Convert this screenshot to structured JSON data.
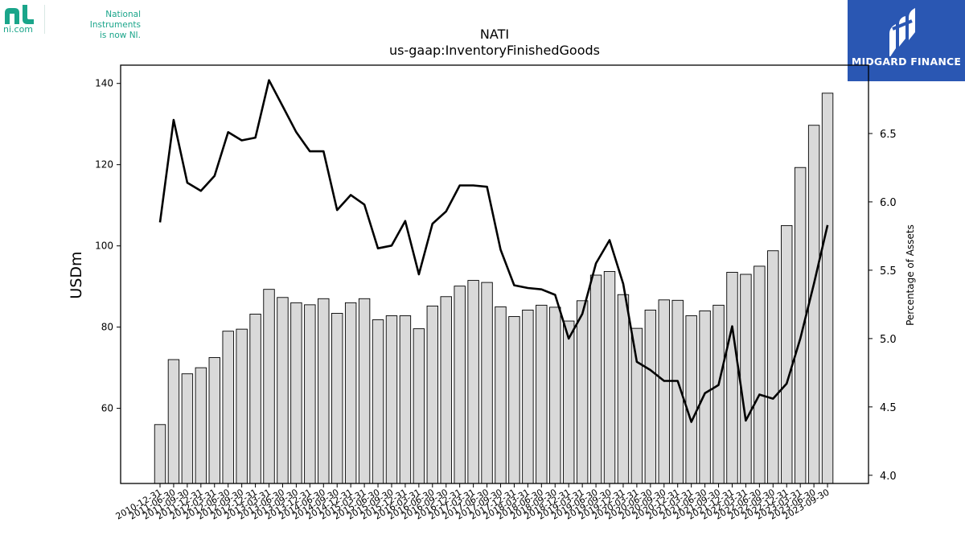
{
  "header": {
    "ni_logo_text": "ni.com",
    "ni_tagline_line1": "National Instruments",
    "ni_tagline_line2": "is now NI.",
    "brand_name": "MIDGARD FINANCE",
    "brand_color": "#2a57b3",
    "ni_color": "#1aa58a"
  },
  "chart_data": {
    "type": "bar",
    "title": "NATI",
    "subtitle": "us-gaap:InventoryFinishedGoods",
    "ylabel": "USDm",
    "y2label": "Percentage of Assets",
    "ylim": [
      41.5,
      144.5
    ],
    "y2lim": [
      3.94,
      7.0
    ],
    "yticks": [
      60,
      80,
      100,
      120,
      140
    ],
    "y2ticks": [
      "4.0",
      "4.5",
      "5.0",
      "5.5",
      "6.0",
      "6.5"
    ],
    "categories": [
      "2010-12-31",
      "2011-06-30",
      "2011-09-30",
      "2011-12-31",
      "2012-03-31",
      "2012-06-30",
      "2012-09-30",
      "2012-12-31",
      "2013-03-31",
      "2013-06-30",
      "2013-09-30",
      "2013-12-31",
      "2014-06-30",
      "2014-09-30",
      "2014-12-31",
      "2015-03-31",
      "2015-06-30",
      "2015-09-30",
      "2015-12-31",
      "2016-03-31",
      "2016-06-30",
      "2016-09-30",
      "2016-12-31",
      "2017-03-31",
      "2017-06-30",
      "2017-09-30",
      "2017-12-31",
      "2018-03-31",
      "2018-06-30",
      "2018-09-30",
      "2018-12-31",
      "2019-03-31",
      "2019-06-30",
      "2019-09-30",
      "2019-12-31",
      "2020-03-31",
      "2020-06-30",
      "2020-09-30",
      "2020-12-31",
      "2021-03-31",
      "2021-06-30",
      "2021-09-30",
      "2021-12-31",
      "2022-03-31",
      "2022-06-30",
      "2022-09-30",
      "2022-12-31",
      "2023-03-31",
      "2023-06-30",
      "2023-09-30"
    ],
    "series": [
      {
        "name": "InventoryFinishedGoods",
        "kind": "bar",
        "axis": "left",
        "color": "#d9d9d9",
        "values": [
          56.0,
          72.0,
          68.5,
          70.0,
          72.5,
          79.0,
          79.5,
          83.2,
          89.3,
          87.3,
          86.0,
          85.5,
          87.0,
          83.4,
          86.0,
          87.0,
          81.8,
          82.8,
          82.8,
          79.6,
          85.2,
          87.5,
          90.1,
          91.5,
          91.0,
          85.0,
          82.6,
          84.2,
          85.4,
          84.9,
          81.5,
          86.5,
          92.8,
          93.7,
          88.0,
          79.7,
          84.2,
          86.7,
          86.6,
          82.8,
          84.0,
          85.4,
          93.5,
          93.0,
          95.0,
          98.8,
          105.0,
          119.3,
          129.7,
          137.6
        ]
      },
      {
        "name": "Percentage of Assets",
        "kind": "line",
        "axis": "right",
        "color": "#000000",
        "values": [
          5.85,
          6.6,
          6.14,
          6.08,
          6.19,
          6.51,
          6.45,
          6.47,
          6.89,
          6.7,
          6.51,
          6.37,
          6.37,
          5.94,
          6.05,
          5.98,
          5.66,
          5.68,
          5.86,
          5.47,
          5.84,
          5.93,
          6.12,
          6.12,
          6.11,
          5.65,
          5.39,
          5.37,
          5.36,
          5.32,
          5.0,
          5.18,
          5.55,
          5.72,
          5.4,
          4.83,
          4.77,
          4.69,
          4.69,
          4.39,
          4.6,
          4.66,
          5.09,
          4.4,
          4.59,
          4.56,
          4.67,
          5.0,
          5.4,
          5.83
        ]
      }
    ],
    "grid": false,
    "legend": "none"
  }
}
